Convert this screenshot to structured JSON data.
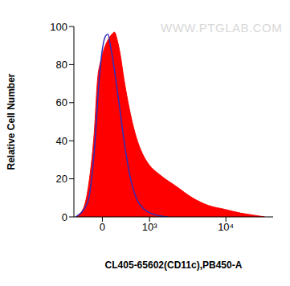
{
  "chart_data": {
    "type": "histogram_overlay",
    "watermark": "WWW.PTGLAB.COM",
    "x_label": "CL405-65602(CD11c),PB450-A",
    "y_label": "Relative Cell Number",
    "xlim": [
      -500,
      40000
    ],
    "xticks": [
      0,
      {
        "value": 1000,
        "label": "10³"
      },
      {
        "value": 10000,
        "label": "10⁴"
      }
    ],
    "ylim": [
      0,
      100
    ],
    "yticks": [
      0,
      20,
      40,
      60,
      80,
      100
    ],
    "grid": false,
    "series": [
      {
        "type": "area",
        "color": "#ff0000",
        "x": [
          -459,
          -305,
          -207,
          -127,
          -76,
          -25,
          25,
          89,
          153,
          193,
          248,
          290,
          364,
          444,
          530,
          622,
          789,
          958,
          1407,
          2311,
          3745,
          5992,
          9630,
          15460,
          21990,
          31350
        ],
        "values": [
          0,
          5,
          20,
          45,
          72,
          82,
          88,
          93,
          96,
          97,
          92,
          86,
          72,
          60,
          50,
          42,
          33,
          28,
          22,
          16,
          10,
          6,
          4,
          2,
          1,
          0
        ]
      },
      {
        "type": "line",
        "color": "#2e2eb8",
        "x": [
          -459,
          -234,
          -127,
          -50,
          0,
          50,
          89,
          127,
          180,
          262,
          364,
          477,
          622,
          835,
          1241,
          1814
        ],
        "values": [
          0,
          8,
          35,
          72,
          88,
          95,
          96,
          90,
          80,
          62,
          40,
          22,
          10,
          4,
          1,
          0
        ]
      }
    ]
  }
}
